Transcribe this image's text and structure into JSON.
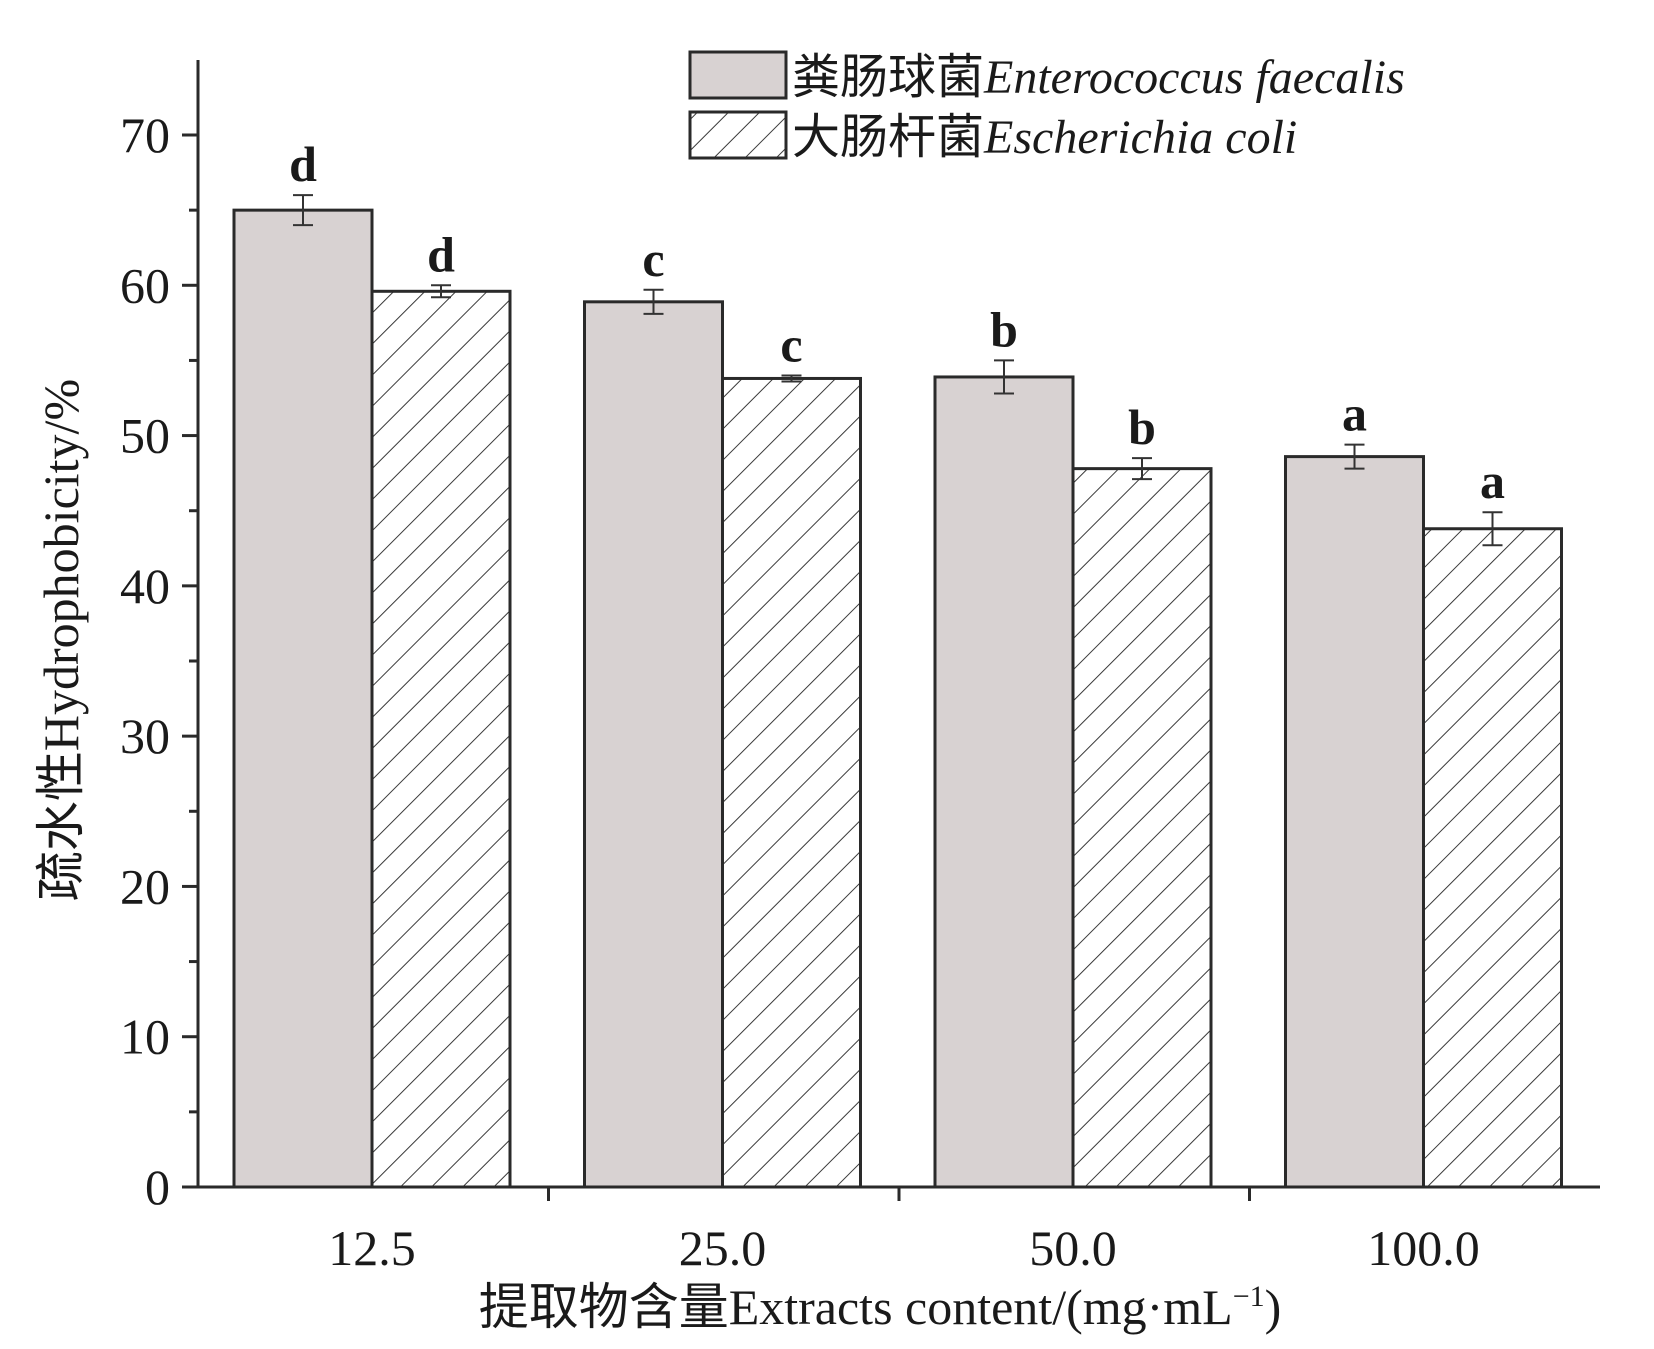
{
  "chart_data": {
    "type": "bar",
    "categories": [
      "12.5",
      "25.0",
      "50.0",
      "100.0"
    ],
    "series": [
      {
        "name_cn": "粪肠球菌",
        "name_latin": "Enterococcus faecalis",
        "values": [
          65.0,
          58.9,
          53.9,
          48.6
        ],
        "errors": [
          1.0,
          0.8,
          1.1,
          0.8
        ],
        "letters": [
          "d",
          "c",
          "b",
          "a"
        ],
        "fill": "#d8d2d2",
        "pattern": "solid"
      },
      {
        "name_cn": "大肠杆菌",
        "name_latin": "Escherichia coli",
        "values": [
          59.6,
          53.8,
          47.8,
          43.8
        ],
        "errors": [
          0.4,
          0.2,
          0.7,
          1.1
        ],
        "letters": [
          "d",
          "c",
          "b",
          "a"
        ],
        "fill": "#ffffff",
        "pattern": "diagonal-hatch"
      }
    ],
    "xlabel": "提取物含量Extracts content/(mg·mL",
    "xlabel_sup": "−1",
    "xlabel_close": ")",
    "ylabel": "疏水性Hydrophobicity/%",
    "yticks": [
      "0",
      "10",
      "20",
      "30",
      "40",
      "50",
      "60",
      "70"
    ],
    "ylim": [
      0,
      75
    ],
    "grid": false,
    "legend_position": "top-right"
  },
  "colors": {
    "axis": "#2a2a2a",
    "bar_stroke": "#2a2a2a",
    "hatch": "#3a3a3a"
  }
}
